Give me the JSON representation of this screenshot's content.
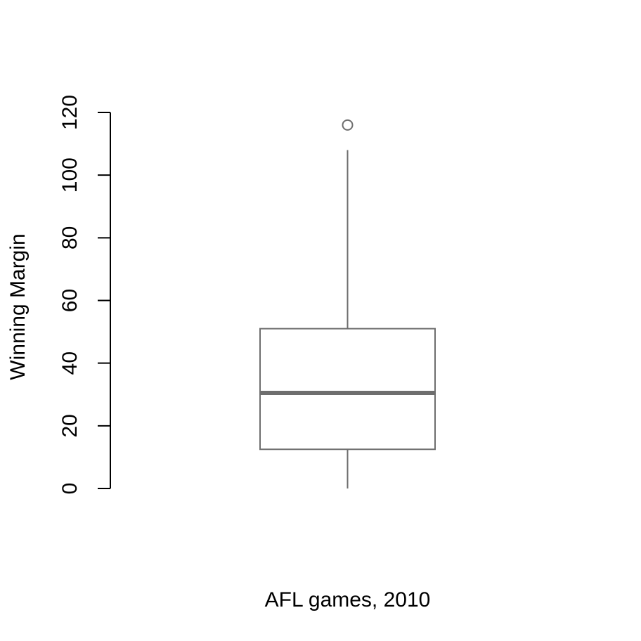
{
  "chart_data": {
    "type": "boxplot",
    "title": "",
    "xlabel": "AFL games, 2010",
    "ylabel": "Winning Margin",
    "ylim": [
      0,
      120
    ],
    "y_ticks": [
      0,
      20,
      40,
      60,
      80,
      100,
      120
    ],
    "grid": false,
    "legend": "none",
    "box": {
      "whisker_low": 0,
      "q1": 12.5,
      "median": 30.5,
      "q3": 51,
      "whisker_high": 108,
      "outliers": [
        116
      ]
    },
    "colors": {
      "box_stroke": "#6e6e6e",
      "median": "#6e6e6e",
      "axis": "#000000",
      "text": "#000000"
    }
  }
}
